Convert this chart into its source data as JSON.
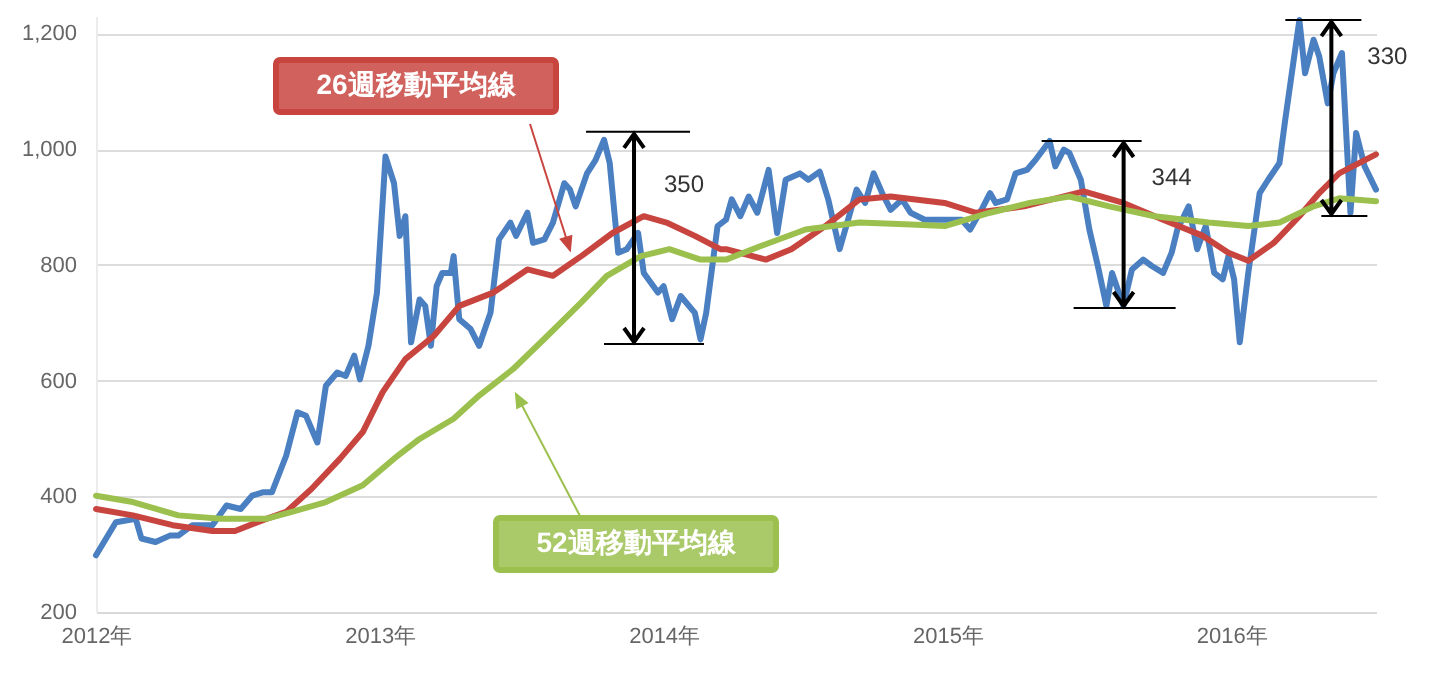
{
  "chart_data": {
    "type": "line",
    "xlim": [
      2012,
      2016.51
    ],
    "xticks": [
      {
        "value": 2012,
        "label": "2012年"
      },
      {
        "value": 2013,
        "label": "2013年"
      },
      {
        "value": 2014,
        "label": "2014年"
      },
      {
        "value": 2015,
        "label": "2015年"
      },
      {
        "value": 2016,
        "label": "2016年"
      }
    ],
    "ylim": [
      200,
      1230
    ],
    "yticks": [
      200,
      400,
      600,
      800,
      {
        "value": 1000,
        "label": "1,000"
      },
      {
        "value": 1200,
        "label": "1,200"
      }
    ],
    "grid": "y",
    "line_style": "solid",
    "marker": "none",
    "annotations": [
      {
        "text": "350",
        "x": 2013.79,
        "y": 1016
      },
      {
        "text": "344",
        "x": 2015.36,
        "y": 1014
      },
      {
        "text": "330",
        "x": 2016.24,
        "y": 1223
      }
    ],
    "series": [
      {
        "color": "#4a7fc1",
        "x": [
          2012.0,
          2012.07,
          2012.14,
          2012.16,
          2012.21,
          2012.26,
          2012.29,
          2012.34,
          2012.41,
          2012.46,
          2012.51,
          2012.55,
          2012.59,
          2012.62,
          2012.67,
          2012.71,
          2012.74,
          2012.78,
          2012.81,
          2012.85,
          2012.88,
          2012.91,
          2012.93,
          2012.96,
          2012.99,
          2013.02,
          2013.05,
          2013.07,
          2013.09,
          2013.11,
          2013.14,
          2013.16,
          2013.18,
          2013.2,
          2013.22,
          2013.25,
          2013.26,
          2013.28,
          2013.32,
          2013.35,
          2013.39,
          2013.42,
          2013.46,
          2013.48,
          2013.52,
          2013.54,
          2013.58,
          2013.61,
          2013.65,
          2013.67,
          2013.69,
          2013.73,
          2013.76,
          2013.79,
          2013.81,
          2013.84,
          2013.87,
          2013.91,
          2013.93,
          2013.98,
          2014.0,
          2014.03,
          2014.06,
          2014.11,
          2014.13,
          2014.15,
          2014.19,
          2014.22,
          2014.24,
          2014.27,
          2014.3,
          2014.33,
          2014.37,
          2014.4,
          2014.43,
          2014.48,
          2014.51,
          2014.55,
          2014.58,
          2014.62,
          2014.65,
          2014.68,
          2014.71,
          2014.74,
          2014.77,
          2014.8,
          2014.84,
          2014.87,
          2014.92,
          2014.97,
          2015.0,
          2015.05,
          2015.08,
          2015.12,
          2015.15,
          2015.17,
          2015.21,
          2015.24,
          2015.28,
          2015.31,
          2015.36,
          2015.38,
          2015.41,
          2015.43,
          2015.47,
          2015.5,
          2015.53,
          2015.56,
          2015.58,
          2015.62,
          2015.65,
          2015.69,
          2015.72,
          2015.76,
          2015.79,
          2015.81,
          2015.85,
          2015.88,
          2015.91,
          2015.94,
          2015.97,
          2015.99,
          2016.01,
          2016.03,
          2016.06,
          2016.1,
          2016.13,
          2016.17,
          2016.19,
          2016.22,
          2016.24,
          2016.26,
          2016.29,
          2016.31,
          2016.34,
          2016.36,
          2016.39,
          2016.42,
          2016.44,
          2016.47,
          2016.51
        ],
        "values": [
          298,
          355,
          361,
          327,
          321,
          332,
          332,
          350,
          350,
          384,
          378,
          401,
          407,
          407,
          470,
          545,
          539,
          493,
          591,
          614,
          608,
          643,
          602,
          660,
          752,
          987,
          941,
          850,
          884,
          666,
          740,
          729,
          660,
          763,
          786,
          786,
          815,
          706,
          689,
          660,
          717,
          844,
          873,
          850,
          890,
          838,
          844,
          873,
          941,
          930,
          901,
          958,
          981,
          1016,
          976,
          821,
          827,
          855,
          786,
          752,
          763,
          706,
          746,
          717,
          671,
          717,
          867,
          878,
          913,
          884,
          918,
          890,
          964,
          855,
          947,
          958,
          947,
          961,
          913,
          827,
          878,
          930,
          907,
          958,
          924,
          895,
          913,
          890,
          878,
          878,
          878,
          878,
          861,
          895,
          924,
          907,
          913,
          958,
          964,
          981,
          1014,
          970,
          999,
          993,
          947,
          861,
          798,
          729,
          786,
          729,
          792,
          809,
          798,
          786,
          821,
          861,
          901,
          827,
          867,
          786,
          775,
          815,
          775,
          666,
          786,
          924,
          947,
          976,
          1050,
          1154,
          1223,
          1131,
          1189,
          1160,
          1079,
          1131,
          1166,
          890,
          1028,
          970,
          930
        ]
      },
      {
        "name": "26週移動平均線",
        "color": "#c8453f",
        "x": [
          2012.0,
          2012.13,
          2012.27,
          2012.41,
          2012.49,
          2012.6,
          2012.67,
          2012.76,
          2012.86,
          2012.94,
          2013.01,
          2013.09,
          2013.19,
          2013.28,
          2013.4,
          2013.52,
          2013.61,
          2013.71,
          2013.82,
          2013.93,
          2014.01,
          2014.11,
          2014.2,
          2014.22,
          2014.36,
          2014.45,
          2014.57,
          2014.69,
          2014.8,
          2014.99,
          2015.1,
          2015.27,
          2015.48,
          2015.62,
          2015.76,
          2015.9,
          2015.99,
          2016.06,
          2016.15,
          2016.24,
          2016.31,
          2016.38,
          2016.51
        ],
        "values": [
          378,
          367,
          350,
          340,
          340,
          361,
          373,
          413,
          465,
          511,
          580,
          637,
          677,
          729,
          752,
          792,
          781,
          815,
          855,
          884,
          873,
          850,
          827,
          827,
          809,
          827,
          867,
          913,
          918,
          907,
          890,
          901,
          927,
          907,
          878,
          850,
          821,
          807,
          838,
          884,
          924,
          958,
          991
        ]
      },
      {
        "name": "52週移動平均線",
        "color": "#9bc04e",
        "x": [
          2012.0,
          2012.13,
          2012.29,
          2012.44,
          2012.6,
          2012.69,
          2012.81,
          2012.94,
          2013.05,
          2013.14,
          2013.26,
          2013.35,
          2013.47,
          2013.59,
          2013.71,
          2013.8,
          2013.92,
          2014.02,
          2014.13,
          2014.22,
          2014.34,
          2014.5,
          2014.69,
          2014.85,
          2014.99,
          2015.15,
          2015.29,
          2015.43,
          2015.57,
          2015.73,
          2015.92,
          2016.06,
          2016.17,
          2016.29,
          2016.38,
          2016.51
        ],
        "values": [
          401,
          390,
          367,
          361,
          361,
          373,
          390,
          419,
          465,
          499,
          534,
          574,
          620,
          677,
          735,
          781,
          815,
          827,
          809,
          809,
          832,
          861,
          873,
          870,
          867,
          890,
          907,
          918,
          901,
          884,
          873,
          867,
          873,
          901,
          915,
          910
        ]
      }
    ]
  }
}
